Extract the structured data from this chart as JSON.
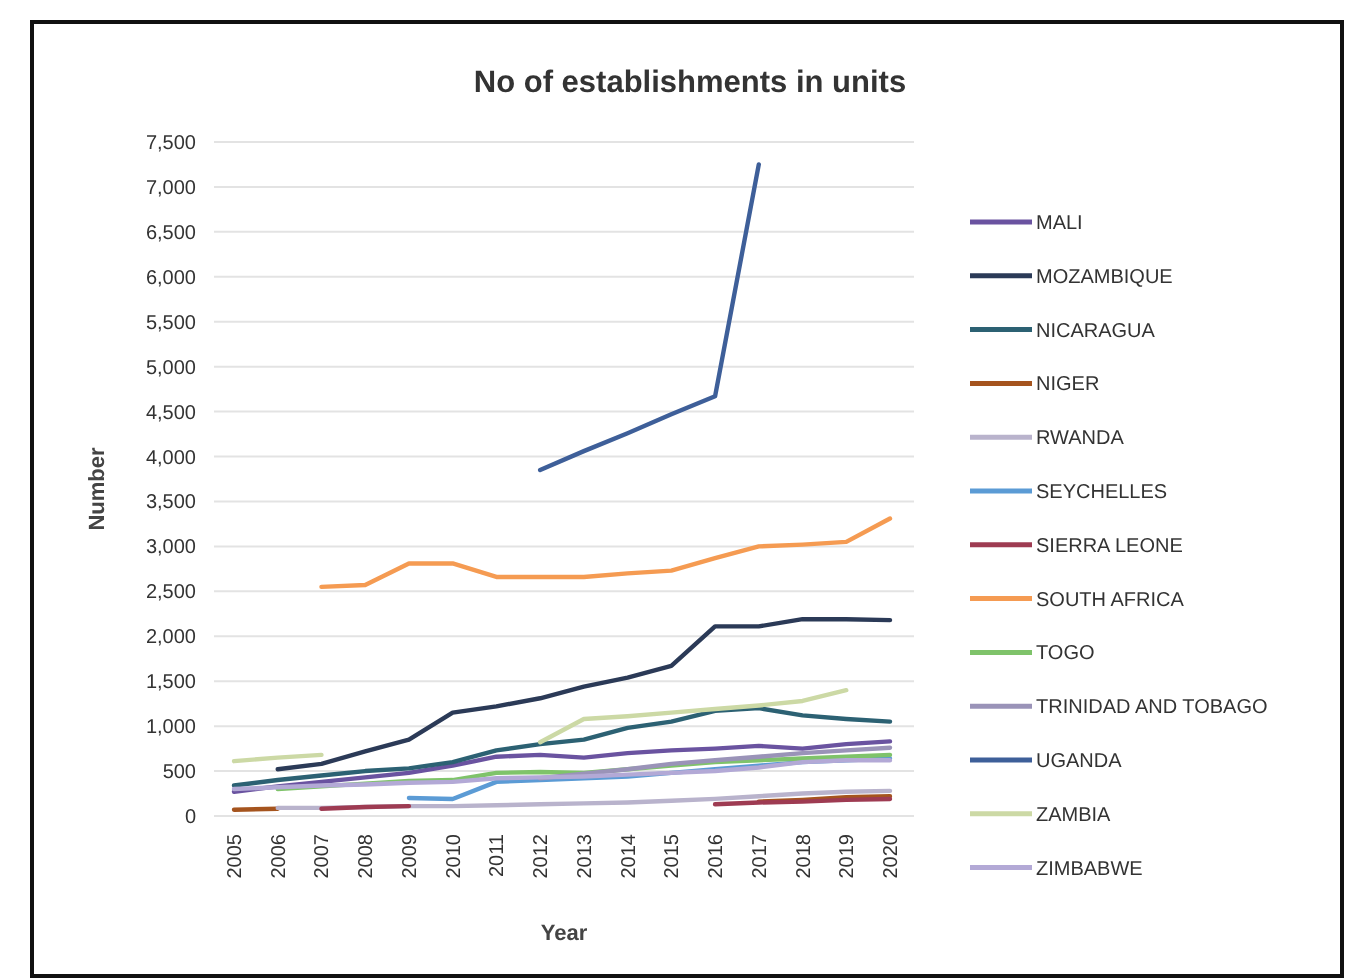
{
  "chart_data": {
    "type": "line",
    "title": "No of establishments in units",
    "xlabel": "Year",
    "ylabel": "Number",
    "categories": [
      "2005",
      "2006",
      "2007",
      "2008",
      "2009",
      "2010",
      "2011",
      "2012",
      "2013",
      "2014",
      "2015",
      "2016",
      "2017",
      "2018",
      "2019",
      "2020"
    ],
    "series": [
      {
        "name": "MALI",
        "color": "#6a53a0",
        "values": [
          270,
          330,
          380,
          430,
          480,
          560,
          660,
          680,
          650,
          700,
          730,
          750,
          780,
          750,
          800,
          830
        ]
      },
      {
        "name": "MOZAMBIQUE",
        "color": "#2b3a57",
        "values": [
          null,
          520,
          580,
          720,
          850,
          1150,
          1220,
          1310,
          1440,
          1540,
          1670,
          2110,
          2110,
          2190,
          2190,
          2180
        ]
      },
      {
        "name": "NICARAGUA",
        "color": "#2c6173",
        "values": [
          340,
          400,
          450,
          500,
          530,
          600,
          730,
          800,
          850,
          980,
          1050,
          1170,
          1200,
          1120,
          1080,
          1050
        ]
      },
      {
        "name": "NIGER",
        "color": "#a5541e",
        "values": [
          70,
          80,
          null,
          null,
          null,
          null,
          null,
          null,
          null,
          null,
          null,
          null,
          160,
          180,
          210,
          220
        ]
      },
      {
        "name": "RWANDA",
        "color": "#b9b3cc",
        "values": [
          null,
          90,
          90,
          100,
          110,
          110,
          120,
          130,
          140,
          150,
          170,
          190,
          220,
          250,
          270,
          280
        ]
      },
      {
        "name": "SEYCHELLES",
        "color": "#5b9bd5",
        "values": [
          null,
          null,
          null,
          null,
          200,
          190,
          380,
          400,
          420,
          440,
          480,
          520,
          560,
          600,
          620,
          640
        ]
      },
      {
        "name": "SIERRA LEONE",
        "color": "#9e3b52",
        "values": [
          null,
          null,
          80,
          100,
          110,
          null,
          null,
          null,
          null,
          null,
          null,
          130,
          150,
          160,
          180,
          190
        ]
      },
      {
        "name": "SOUTH AFRICA",
        "color": "#f59b52",
        "values": [
          null,
          null,
          2550,
          2570,
          2810,
          2810,
          2660,
          2660,
          2660,
          2700,
          2730,
          2870,
          3000,
          3020,
          3050,
          3310
        ]
      },
      {
        "name": "TOGO",
        "color": "#7fc36a",
        "values": [
          null,
          300,
          330,
          360,
          390,
          400,
          480,
          490,
          480,
          520,
          560,
          600,
          620,
          640,
          660,
          680
        ]
      },
      {
        "name": "TRINIDAD AND TOBAGO",
        "color": "#9a93b8",
        "values": [
          null,
          null,
          null,
          null,
          null,
          null,
          null,
          420,
          470,
          520,
          580,
          620,
          660,
          700,
          730,
          760
        ]
      },
      {
        "name": "UGANDA",
        "color": "#3e5f99",
        "values": [
          null,
          null,
          null,
          null,
          null,
          null,
          null,
          3850,
          4060,
          4260,
          4470,
          4670,
          7250,
          null,
          null,
          null
        ]
      },
      {
        "name": "ZAMBIA",
        "color": "#ccd9a5",
        "values": [
          610,
          650,
          680,
          null,
          null,
          null,
          null,
          820,
          1080,
          1110,
          1150,
          1190,
          1230,
          1280,
          1400,
          null
        ]
      },
      {
        "name": "ZIMBABWE",
        "color": "#b3a9d6",
        "values": [
          300,
          320,
          340,
          350,
          370,
          380,
          420,
          430,
          440,
          460,
          480,
          500,
          540,
          600,
          620,
          620
        ]
      }
    ],
    "ylim": [
      0,
      7500
    ],
    "yticks": [
      0,
      500,
      {
        "value": 1000,
        "label": "1,000"
      },
      {
        "value": 1500,
        "label": "1,500"
      },
      {
        "value": 2000,
        "label": "2,000"
      },
      {
        "value": 2500,
        "label": "2,500"
      },
      {
        "value": 3000,
        "label": "3,000"
      },
      {
        "value": 3500,
        "label": "3,500"
      },
      {
        "value": 4000,
        "label": "4,000"
      },
      {
        "value": 4500,
        "label": "4,500"
      },
      {
        "value": 5000,
        "label": "5,000"
      },
      {
        "value": 5500,
        "label": "5,500"
      },
      {
        "value": 6000,
        "label": "6,000"
      },
      {
        "value": 6500,
        "label": "6,500"
      },
      {
        "value": 7000,
        "label": "7,000"
      },
      {
        "value": 7500,
        "label": "7,500"
      }
    ],
    "grid": "y",
    "legend": "right"
  }
}
